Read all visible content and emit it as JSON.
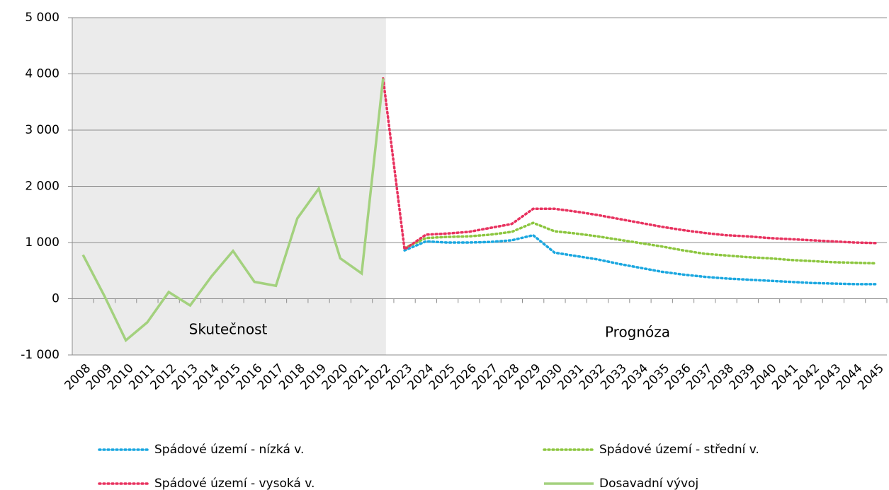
{
  "chart_data": {
    "type": "line",
    "categories": [
      "2008",
      "2009",
      "2010",
      "2011",
      "2012",
      "2013",
      "2014",
      "2015",
      "2016",
      "2017",
      "2018",
      "2019",
      "2020",
      "2021",
      "2022",
      "2023",
      "2024",
      "2025",
      "2026",
      "2027",
      "2028",
      "2029",
      "2030",
      "2031",
      "2032",
      "2033",
      "2034",
      "2035",
      "2036",
      "2037",
      "2038",
      "2039",
      "2040",
      "2041",
      "2042",
      "2043",
      "2044",
      "2045"
    ],
    "series": [
      {
        "name": "Spádové území - nízká v.",
        "color": "#1aa7e0",
        "style": "dotted",
        "values": [
          null,
          null,
          null,
          null,
          null,
          null,
          null,
          null,
          null,
          null,
          null,
          null,
          null,
          null,
          null,
          860,
          1020,
          1000,
          1000,
          1010,
          1040,
          1130,
          820,
          760,
          700,
          620,
          550,
          480,
          430,
          390,
          360,
          340,
          320,
          300,
          280,
          270,
          260,
          260
        ]
      },
      {
        "name": "Spádové území - střední v.",
        "color": "#8cc63f",
        "style": "dotted",
        "values": [
          null,
          null,
          null,
          null,
          null,
          null,
          null,
          null,
          null,
          null,
          null,
          null,
          null,
          null,
          null,
          900,
          1080,
          1100,
          1110,
          1140,
          1190,
          1350,
          1200,
          1160,
          1110,
          1050,
          990,
          930,
          860,
          800,
          770,
          740,
          720,
          690,
          670,
          650,
          640,
          630
        ]
      },
      {
        "name": "Spádové území - vysoká v.",
        "color": "#e8325f",
        "style": "dotted",
        "values": [
          null,
          null,
          null,
          null,
          null,
          null,
          null,
          null,
          null,
          null,
          null,
          null,
          null,
          null,
          3920,
          880,
          1140,
          1160,
          1190,
          1260,
          1330,
          1600,
          1600,
          1550,
          1490,
          1420,
          1350,
          1280,
          1220,
          1170,
          1130,
          1110,
          1080,
          1060,
          1040,
          1020,
          1000,
          990
        ]
      },
      {
        "name": "Dosavadní vývoj",
        "color": "#a3d17e",
        "style": "solid",
        "values": [
          780,
          50,
          -740,
          -420,
          120,
          -120,
          400,
          850,
          300,
          230,
          1430,
          1960,
          720,
          450,
          3920,
          null,
          null,
          null,
          null,
          null,
          null,
          null,
          null,
          null,
          null,
          null,
          null,
          null,
          null,
          null,
          null,
          null,
          null,
          null,
          null,
          null,
          null,
          null
        ]
      }
    ],
    "annotations": [
      "Skutečnost",
      "Prognóza"
    ],
    "ylim": [
      -1000,
      5000
    ],
    "yticks": [
      {
        "value": -1000,
        "label": "-1 000"
      },
      0,
      {
        "value": 1000,
        "label": "1 000"
      },
      {
        "value": 2000,
        "label": "2 000"
      },
      {
        "value": 3000,
        "label": "3 000"
      },
      {
        "value": 4000,
        "label": "4 000"
      },
      {
        "value": 5000,
        "label": "5 000"
      }
    ],
    "grid": true
  }
}
